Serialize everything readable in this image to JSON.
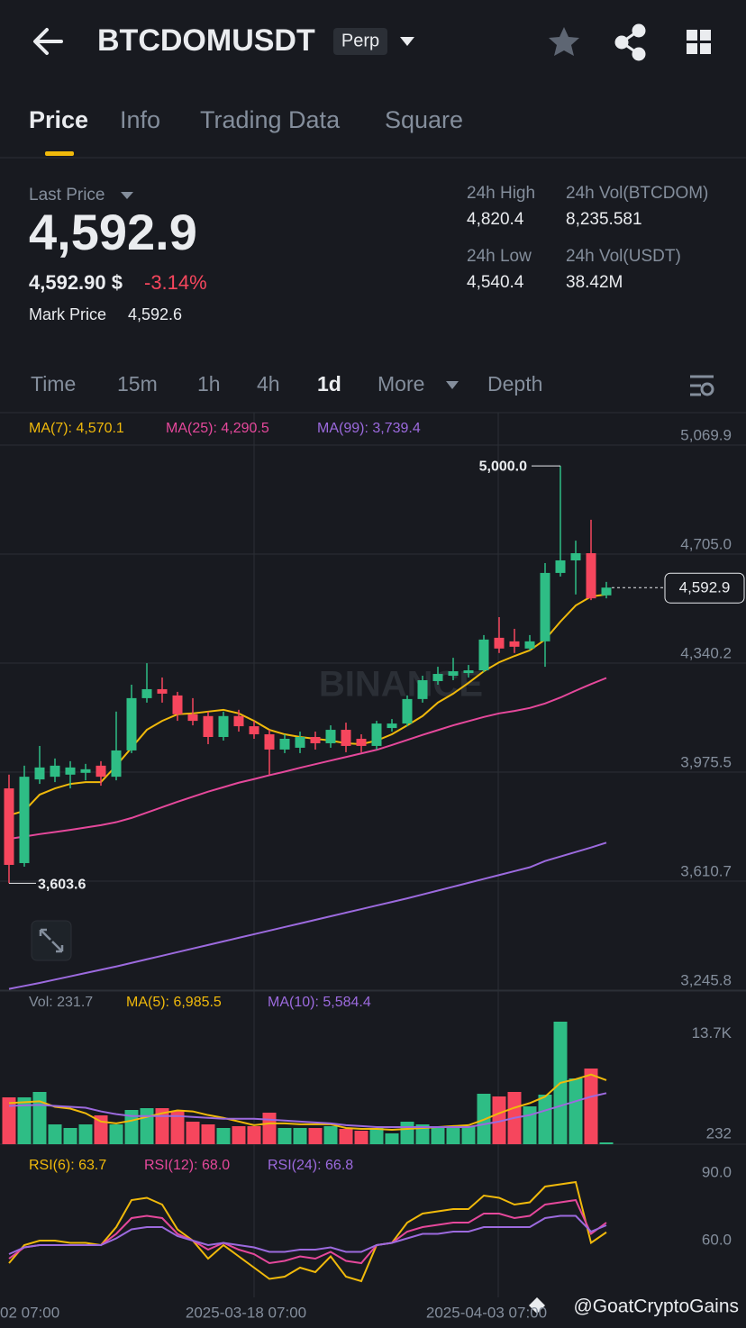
{
  "header": {
    "symbol": "BTCDOMUSDT",
    "badge": "Perp"
  },
  "tabs": [
    "Price",
    "Info",
    "Trading Data",
    "Square"
  ],
  "ticker": {
    "last_price_label": "Last Price",
    "last_price": "4,592.9",
    "usd_price": "4,592.90 $",
    "change": "-3.14%",
    "mark_price_label": "Mark Price",
    "mark_price": "4,592.6",
    "stats": [
      {
        "label": "24h High",
        "value": "4,820.4"
      },
      {
        "label": "24h Vol(BTCDOM)",
        "value": "8,235.581"
      },
      {
        "label": "24h Low",
        "value": "4,540.4"
      },
      {
        "label": "24h Vol(USDT)",
        "value": "38.42M"
      }
    ]
  },
  "intervals": [
    "Time",
    "15m",
    "1h",
    "4h",
    "1d",
    "More",
    "Depth"
  ],
  "watermark": "BINANCE",
  "time_axis": [
    "02 07:00",
    "2025-03-18 07:00",
    "2025-04-03 07:00"
  ],
  "credit": "@GoatCryptoGains",
  "chart_data": [
    {
      "type": "candlestick",
      "up_color": "#2ebd85",
      "down_color": "#f6465d",
      "open": [
        3921,
        3671,
        3951,
        3960,
        3967,
        3973,
        3997,
        3960,
        4048,
        4223,
        4253,
        4232,
        4169,
        4163,
        4093,
        4163,
        4129,
        4102,
        4051,
        4057,
        4093,
        4072,
        4117,
        4087,
        4063,
        4123,
        4138,
        4220,
        4280,
        4298,
        4307,
        4316,
        4425,
        4413,
        4389,
        4413,
        4642,
        4684,
        4708,
        4567
      ],
      "high": [
        3967,
        3997,
        4063,
        4021,
        4012,
        4003,
        4012,
        4178,
        4268,
        4340,
        4292,
        4244,
        4223,
        4178,
        4178,
        4184,
        4147,
        4117,
        4102,
        4111,
        4111,
        4132,
        4141,
        4102,
        4147,
        4153,
        4232,
        4298,
        4328,
        4358,
        4334,
        4434,
        4494,
        4455,
        4434,
        4675,
        5000,
        4750,
        4820,
        4612
      ],
      "low": [
        3603.6,
        3659,
        3936,
        3942,
        3921,
        3948,
        3930,
        3948,
        4039,
        4208,
        4208,
        4147,
        4132,
        4069,
        4081,
        4111,
        4087,
        3967,
        4039,
        4039,
        4051,
        4057,
        4042,
        4042,
        4051,
        4111,
        4129,
        4208,
        4268,
        4283,
        4292,
        4310,
        4374,
        4374,
        4383,
        4328,
        4630,
        4570,
        4551,
        4557
      ],
      "close": [
        3665,
        3960,
        3991,
        3997,
        3991,
        3985,
        3960,
        4048,
        4223,
        4253,
        4238,
        4169,
        4147,
        4093,
        4163,
        4129,
        4102,
        4051,
        4087,
        4093,
        4072,
        4117,
        4063,
        4063,
        4138,
        4138,
        4220,
        4283,
        4304,
        4313,
        4316,
        4419,
        4389,
        4395,
        4413,
        4642,
        4684,
        4708,
        4557,
        4592.9
      ],
      "series": [
        {
          "name": "MA(7): 4,570.1",
          "color": "#f0b90b",
          "values": [
            3831,
            3846,
            3900,
            3921,
            3936,
            3942,
            3942,
            3997,
            4057,
            4117,
            4147,
            4169,
            4172,
            4178,
            4184,
            4172,
            4147,
            4117,
            4102,
            4093,
            4087,
            4081,
            4072,
            4069,
            4081,
            4102,
            4132,
            4163,
            4208,
            4238,
            4274,
            4313,
            4343,
            4364,
            4383,
            4419,
            4479,
            4533,
            4563,
            4570.1
          ]
        },
        {
          "name": "MA(25): 4,290.5",
          "color": "#e5489b",
          "values": [
            3752,
            3760,
            3768,
            3775,
            3782,
            3790,
            3798,
            3808,
            3822,
            3840,
            3858,
            3876,
            3893,
            3910,
            3925,
            3940,
            3952,
            3965,
            3977,
            3990,
            4002,
            4014,
            4026,
            4038,
            4050,
            4066,
            4083,
            4100,
            4116,
            4132,
            4146,
            4160,
            4172,
            4180,
            4190,
            4205,
            4225,
            4248,
            4270,
            4290.5
          ]
        },
        {
          "name": "MA(99): 3,739.4",
          "color": "#9c6ade",
          "values": [
            3250,
            3260,
            3270,
            3281,
            3292,
            3303,
            3314,
            3325,
            3337,
            3349,
            3361,
            3373,
            3385,
            3397,
            3409,
            3421,
            3433,
            3445,
            3457,
            3469,
            3481,
            3493,
            3505,
            3517,
            3529,
            3541,
            3553,
            3566,
            3579,
            3592,
            3605,
            3618,
            3631,
            3644,
            3657,
            3678,
            3693,
            3708,
            3723,
            3739.4
          ]
        }
      ],
      "high_label": "5,000.0",
      "low_label": "3,603.6",
      "last_label": "4,592.9",
      "ylim": [
        3242.8,
        5172.4
      ],
      "yticks": [
        {
          "value": 5069.9,
          "label": "5,069.9"
        },
        {
          "value": 4705.0,
          "label": "4,705.0"
        },
        {
          "value": 4340.2,
          "label": "4,340.2"
        },
        {
          "value": 3975.5,
          "label": "3,975.5"
        },
        {
          "value": 3610.7,
          "label": "3,610.7"
        },
        {
          "value": 3245.8,
          "label": "3,245.8"
        }
      ],
      "grid": true
    },
    {
      "type": "bar",
      "volume_label": "Vol: 231.7",
      "values": [
        5125,
        5125,
        5712,
        2189,
        1798,
        2189,
        3168,
        2189,
        3755,
        3950,
        3950,
        3657,
        2483,
        2189,
        1798,
        1993,
        1993,
        3461,
        1798,
        1798,
        1798,
        1993,
        1700,
        1504,
        1798,
        1211,
        2483,
        2189,
        1993,
        1993,
        1993,
        5516,
        5222,
        5712,
        4146,
        5418,
        13344,
        7179,
        8256,
        231.7
      ],
      "series": [
        {
          "name": "MA(5): 6,985.5",
          "color": "#f0b90b",
          "values": [
            4500,
            4600,
            4700,
            4100,
            3900,
            3400,
            2500,
            2300,
            2600,
            3000,
            3400,
            3700,
            3600,
            3200,
            2900,
            2500,
            2100,
            2300,
            2300,
            2200,
            2200,
            2200,
            1800,
            1700,
            1700,
            1600,
            1700,
            1800,
            1900,
            2000,
            2100,
            2700,
            3400,
            4000,
            4500,
            5200,
            6700,
            7100,
            7600,
            6985.5
          ]
        },
        {
          "name": "MA(10): 5,584.4",
          "color": "#9c6ade",
          "values": [
            4200,
            4250,
            4300,
            4200,
            4100,
            4000,
            3600,
            3300,
            3100,
            3100,
            3100,
            3100,
            3000,
            2900,
            2800,
            2800,
            2800,
            2700,
            2600,
            2500,
            2400,
            2300,
            2100,
            2000,
            1900,
            1900,
            1900,
            1900,
            1900,
            1900,
            1900,
            2200,
            2500,
            2900,
            3200,
            3700,
            4200,
            4700,
            5200,
            5584.4
          ]
        }
      ],
      "ylim": [
        36.3,
        16670
      ],
      "yticks": [
        {
          "value": 13700,
          "label": "13.7K"
        },
        232
      ],
      "grid": false
    },
    {
      "type": "line",
      "series": [
        {
          "name": "RSI(6): 63.7",
          "color": "#f0b90b",
          "values": [
            50,
            58,
            60,
            60,
            59,
            59,
            58,
            66,
            78,
            79,
            76,
            65,
            60,
            52,
            58,
            53,
            48,
            43,
            44,
            48,
            46,
            53,
            44,
            42,
            58,
            59,
            68,
            72,
            73,
            74,
            74,
            80,
            79,
            76,
            77,
            84,
            85,
            86,
            59,
            63.7
          ]
        },
        {
          "name": "RSI(12): 68.0",
          "color": "#e5489b",
          "values": [
            52,
            57,
            58,
            58,
            58,
            58,
            58,
            63,
            70,
            71,
            70,
            63,
            60,
            56,
            59,
            56,
            54,
            50,
            51,
            53,
            52,
            55,
            51,
            50,
            58,
            59,
            64,
            66,
            67,
            68,
            68,
            72,
            72,
            70,
            71,
            76,
            77,
            78,
            63,
            68.0
          ]
        },
        {
          "name": "RSI(24): 66.8",
          "color": "#9c6ade",
          "values": [
            54,
            57,
            58,
            58,
            58,
            58,
            58,
            61,
            65,
            66,
            66,
            62,
            60,
            58,
            59,
            58,
            57,
            55,
            55,
            56,
            56,
            57,
            55,
            55,
            58,
            59,
            61,
            63,
            63,
            64,
            64,
            66,
            66,
            66,
            66,
            70,
            71,
            71,
            64,
            66.8
          ]
        }
      ],
      "ylim": [
        34.8,
        102.8
      ],
      "yticks": [
        {
          "value": 90,
          "label": "90.0"
        },
        {
          "value": 60,
          "label": "60.0"
        }
      ],
      "grid": false
    }
  ]
}
